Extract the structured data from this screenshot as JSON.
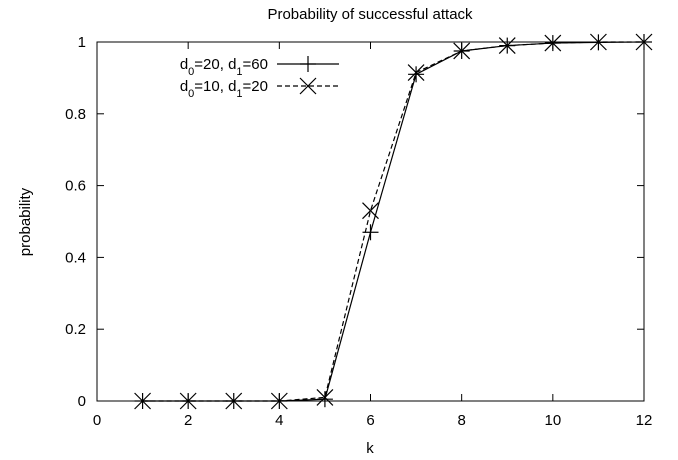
{
  "chart_data": {
    "type": "line",
    "title": "Probability of successful attack",
    "xlabel": "k",
    "ylabel": "probability",
    "xlim": [
      0,
      12
    ],
    "ylim": [
      0,
      1
    ],
    "x_ticks": [
      "0",
      "2",
      "4",
      "6",
      "8",
      "10",
      "12"
    ],
    "y_ticks": [
      "0",
      "0.2",
      "0.4",
      "0.6",
      "0.8",
      "1"
    ],
    "x": [
      1,
      2,
      3,
      4,
      5,
      6,
      7,
      8,
      9,
      10,
      11,
      12
    ],
    "grid": false,
    "legend_position": "top-left",
    "series": [
      {
        "name": "d0=20, d1=60",
        "legend": {
          "p1": "d",
          "s1": "0",
          "p2": "=20, d",
          "s2": "1",
          "p3": "=60"
        },
        "marker": "plus",
        "line_style": "solid",
        "values": [
          0.0,
          0.0,
          0.0,
          0.0,
          0.005,
          0.47,
          0.91,
          0.975,
          0.99,
          0.997,
          0.999,
          1.0
        ]
      },
      {
        "name": "d0=10, d1=20",
        "legend": {
          "p1": "d",
          "s1": "0",
          "p2": "=10, d",
          "s2": "1",
          "p3": "=20"
        },
        "marker": "x",
        "line_style": "dashed",
        "values": [
          0.0,
          0.0,
          0.0,
          0.0,
          0.01,
          0.53,
          0.915,
          0.975,
          0.99,
          0.997,
          1.0,
          1.0
        ]
      }
    ]
  }
}
